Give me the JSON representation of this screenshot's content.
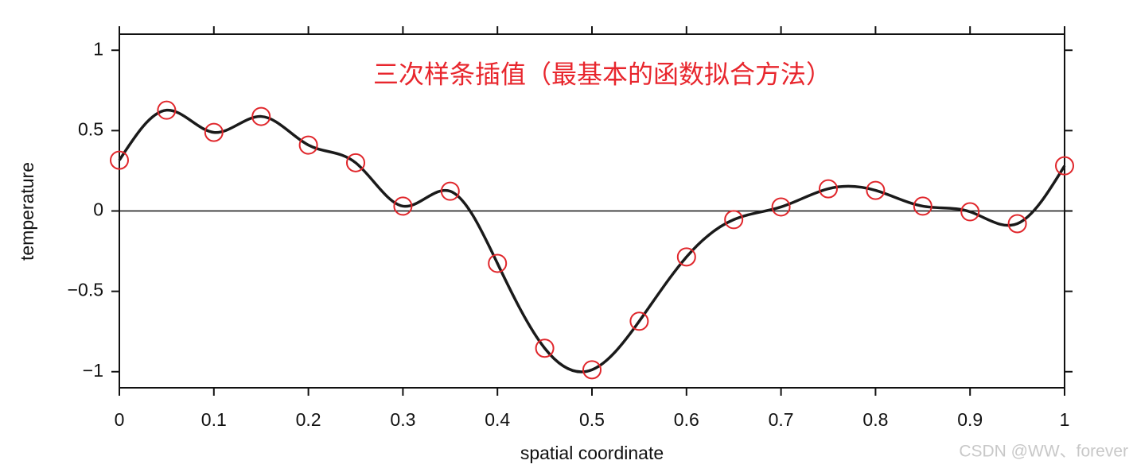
{
  "chart_data": {
    "type": "line",
    "title": "三次样条插值（最基本的函数拟合方法）",
    "title_color": "#e8262d",
    "x_label": "spatial coordinate",
    "y_label": "temperature",
    "watermark": "CSDN @WW、forever",
    "interpolation": "cubic-spline",
    "x": [
      0,
      0.05,
      0.1,
      0.15,
      0.2,
      0.25,
      0.3,
      0.35,
      0.4,
      0.45,
      0.5,
      0.55,
      0.6,
      0.65,
      0.7,
      0.75,
      0.8,
      0.85,
      0.9,
      0.95,
      1
    ],
    "series": [
      {
        "color": "#1a1a1a",
        "marker": "open-circle",
        "marker_color": "#e0262b",
        "values": [
          0.316,
          0.627,
          0.489,
          0.588,
          0.41,
          0.3,
          0.03,
          0.123,
          -0.326,
          -0.854,
          -0.988,
          -0.686,
          -0.286,
          -0.054,
          0.025,
          0.138,
          0.128,
          0.03,
          -0.005,
          -0.079,
          0.281
        ]
      }
    ],
    "xlim": [
      0,
      1
    ],
    "ylim": [
      -1.1,
      1.1
    ],
    "xticks": [
      0,
      0.1,
      0.2,
      0.3,
      0.4,
      0.5,
      0.6,
      0.7,
      0.8,
      0.9,
      1
    ],
    "yticks": [
      {
        "value": -1,
        "label": "−1"
      },
      {
        "value": -0.5,
        "label": "−0.5"
      },
      0,
      0.5,
      1
    ],
    "hline": 0,
    "grid": false
  }
}
